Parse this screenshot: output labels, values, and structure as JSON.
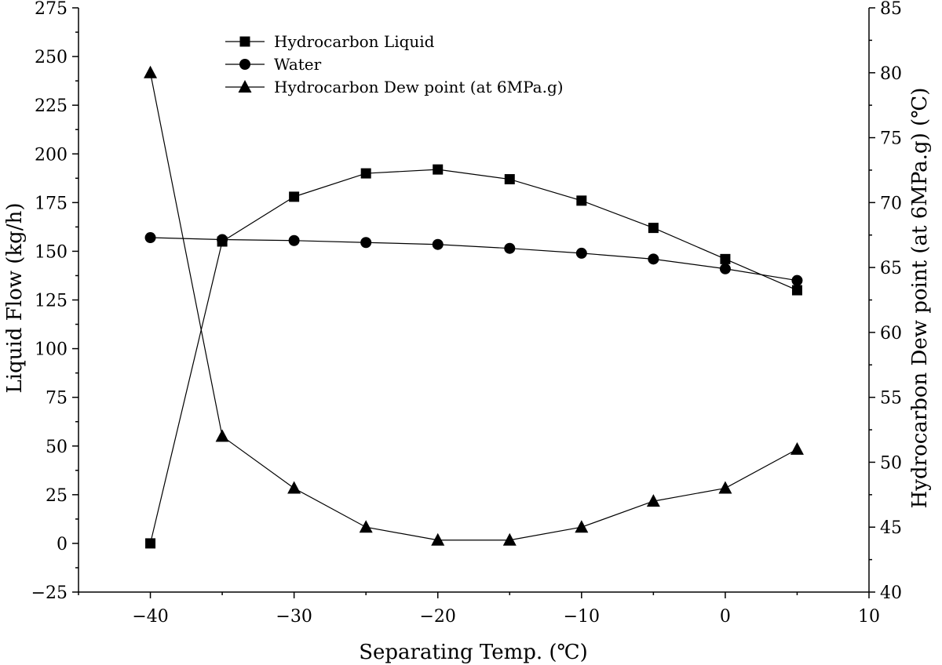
{
  "chart_data": {
    "type": "line",
    "xlabel": "Separating Temp. (℃)",
    "ylabel": "Liquid Flow (kg/h)",
    "y2label": "Hydrocarbon Dew point (at 6MPa.g) (℃)",
    "xlim": [
      -45,
      10
    ],
    "ylim": [
      -25,
      275
    ],
    "y2lim": [
      40,
      85
    ],
    "x_ticks": [
      -40,
      -30,
      -20,
      -10,
      0,
      10
    ],
    "y_ticks": [
      -25,
      0,
      25,
      50,
      75,
      100,
      125,
      150,
      175,
      200,
      225,
      250,
      275
    ],
    "y2_ticks": [
      40,
      45,
      50,
      55,
      60,
      65,
      70,
      75,
      80,
      85
    ],
    "grid": false,
    "legend_position": "top-left",
    "x": [
      -40,
      -35,
      -30,
      -25,
      -20,
      -15,
      -10,
      -5,
      0,
      5
    ],
    "series": [
      {
        "name": "Hydrocarbon Liquid",
        "axis": "left",
        "marker": "square",
        "values": [
          0,
          155,
          178,
          190,
          192,
          187,
          176,
          162,
          146,
          130
        ]
      },
      {
        "name": "Water",
        "axis": "left",
        "marker": "circle",
        "values": [
          157,
          156,
          155.5,
          154.5,
          153.5,
          151.5,
          149,
          146,
          141,
          135
        ]
      },
      {
        "name": "Hydrocarbon Dew point (at 6MPa.g)",
        "axis": "right",
        "marker": "triangle",
        "values": [
          80,
          52,
          48,
          45,
          44,
          44,
          45,
          47,
          48,
          51
        ]
      }
    ]
  }
}
